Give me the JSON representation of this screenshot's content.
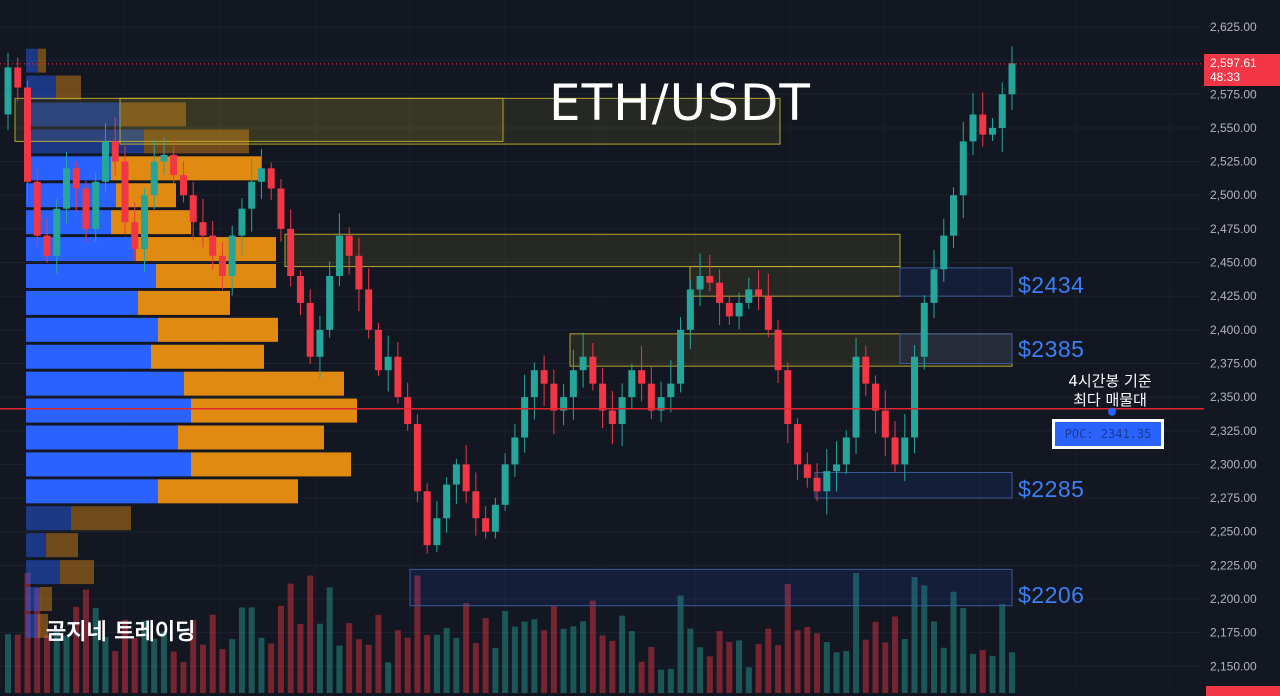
{
  "title": "ETH/USDT",
  "watermark": "곰지네 트레이딩",
  "annotation": {
    "line1": "4시간봉 기준",
    "line2": "최다 매물대"
  },
  "poc_label": "POC: 2341.35",
  "levels": [
    {
      "label": "$2434",
      "value": 2434
    },
    {
      "label": "$2385",
      "value": 2385
    },
    {
      "label": "$2285",
      "value": 2285
    },
    {
      "label": "$2206",
      "value": 2206
    }
  ],
  "current_price": {
    "price": "2,597.61",
    "countdown": "48:33"
  },
  "colors": {
    "background": "#131722",
    "up": "#26a69a",
    "down": "#f23645",
    "profile_blue": "#2962ff",
    "profile_orange": "#e08a12",
    "poc_line": "#e0262f",
    "level_text": "#3d7ff5",
    "zone_yellow": "#c8b430"
  },
  "chart_data": {
    "type": "candlestick",
    "title": "ETH/USDT",
    "timeframe_note": "4시간봉 기준",
    "y_axis": {
      "ticks": [
        2150,
        2175,
        2200,
        2225,
        2250,
        2275,
        2300,
        2325,
        2350,
        2375,
        2400,
        2425,
        2450,
        2475,
        2500,
        2525,
        2550,
        2575,
        2600,
        2625
      ],
      "tick_labels": [
        "2,150.00",
        "2,175.00",
        "2,200.00",
        "2,225.00",
        "2,250.00",
        "2,275.00",
        "2,300.00",
        "2,325.00",
        "2,350.00",
        "2,375.00",
        "2,400.00",
        "2,425.00",
        "2,450.00",
        "2,475.00",
        "2,500.00",
        "2,525.00",
        "2,550.00",
        "2,575.00",
        "2,600.00",
        "2,625.00"
      ],
      "range": [
        2140,
        2640
      ]
    },
    "poc": 2341.35,
    "last_price": 2597.61,
    "closes": [
      2595,
      2580,
      2510,
      2470,
      2455,
      2490,
      2520,
      2505,
      2475,
      2510,
      2540,
      2525,
      2480,
      2460,
      2500,
      2525,
      2530,
      2515,
      2500,
      2480,
      2470,
      2455,
      2440,
      2470,
      2490,
      2510,
      2520,
      2505,
      2475,
      2440,
      2420,
      2380,
      2400,
      2440,
      2470,
      2455,
      2430,
      2400,
      2370,
      2380,
      2350,
      2330,
      2280,
      2240,
      2260,
      2285,
      2300,
      2280,
      2260,
      2250,
      2270,
      2300,
      2320,
      2350,
      2370,
      2360,
      2340,
      2350,
      2370,
      2380,
      2360,
      2340,
      2330,
      2350,
      2370,
      2360,
      2340,
      2350,
      2360,
      2400,
      2430,
      2440,
      2435,
      2420,
      2410,
      2420,
      2430,
      2425,
      2400,
      2370,
      2330,
      2300,
      2290,
      2280,
      2295,
      2300,
      2320,
      2380,
      2360,
      2340,
      2320,
      2300,
      2320,
      2380,
      2420,
      2445,
      2470,
      2500,
      2540,
      2560,
      2545,
      2550,
      2575,
      2598
    ],
    "volume_profile": [
      {
        "price": 2600,
        "buy": 12,
        "sell": 8
      },
      {
        "price": 2580,
        "buy": 30,
        "sell": 25
      },
      {
        "price": 2560,
        "buy": 95,
        "sell": 65
      },
      {
        "price": 2540,
        "buy": 118,
        "sell": 105
      },
      {
        "price": 2520,
        "buy": 85,
        "sell": 150
      },
      {
        "price": 2500,
        "buy": 90,
        "sell": 60
      },
      {
        "price": 2480,
        "buy": 85,
        "sell": 80
      },
      {
        "price": 2460,
        "buy": 110,
        "sell": 140
      },
      {
        "price": 2440,
        "buy": 130,
        "sell": 120
      },
      {
        "price": 2420,
        "buy": 112,
        "sell": 92
      },
      {
        "price": 2400,
        "buy": 132,
        "sell": 120
      },
      {
        "price": 2380,
        "buy": 125,
        "sell": 113
      },
      {
        "price": 2360,
        "buy": 158,
        "sell": 160
      },
      {
        "price": 2340,
        "buy": 165,
        "sell": 166
      },
      {
        "price": 2320,
        "buy": 152,
        "sell": 146
      },
      {
        "price": 2300,
        "buy": 165,
        "sell": 160
      },
      {
        "price": 2280,
        "buy": 132,
        "sell": 140
      },
      {
        "price": 2260,
        "buy": 45,
        "sell": 60
      },
      {
        "price": 2240,
        "buy": 20,
        "sell": 32
      },
      {
        "price": 2220,
        "buy": 34,
        "sell": 34
      },
      {
        "price": 2200,
        "buy": 14,
        "sell": 12
      },
      {
        "price": 2180,
        "buy": 12,
        "sell": 10
      }
    ]
  }
}
